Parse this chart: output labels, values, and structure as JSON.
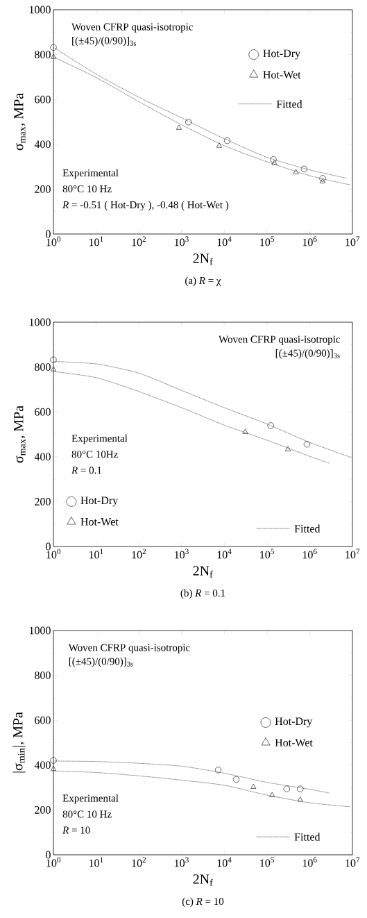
{
  "chart_data": [
    {
      "type": "scatter",
      "title": "(a) *R* = χ",
      "xlabel": "2N$_{f}$",
      "ylabel": "σ$_{max}$, MPa",
      "log": "x",
      "legend": "top right",
      "xlim": [
        1,
        10000000
      ],
      "ylim": [
        0,
        1000
      ],
      "xticks": [
        {
          "value": 1,
          "label": "10$^{0}$"
        },
        {
          "value": 10,
          "label": "10$^{1}$"
        },
        {
          "value": 100,
          "label": "10$^{2}$"
        },
        {
          "value": 1000,
          "label": "10$^{3}$"
        },
        {
          "value": 10000,
          "label": "10$^{4}$"
        },
        {
          "value": 100000,
          "label": "10$^{5}$"
        },
        {
          "value": 1000000,
          "label": "10$^{6}$"
        },
        {
          "value": 10000000,
          "label": "10$^{7}$"
        }
      ],
      "yticks": [
        0,
        200,
        400,
        600,
        800,
        1000
      ],
      "annotations": [
        "Woven CFRP quasi-isotropic",
        "[(±45)/(0/90)]$_{3s}$",
        "Experimental",
        "80°C 10 Hz",
        "*R* = -0.51 ( Hot-Dry ), -0.48 ( Hot-Wet )"
      ],
      "series": [
        {
          "name": "Hot-Dry",
          "type": "scatter",
          "marker": "circle",
          "color": "#000000",
          "x": [
            1,
            1450,
            11700,
            141000,
            740000,
            2000000
          ],
          "values": [
            832,
            499,
            416,
            332,
            290,
            248
          ]
        },
        {
          "name": "Hot-Wet",
          "type": "scatter",
          "marker": "triangle",
          "color": "#000000",
          "x": [
            1,
            870,
            7600,
            149000,
            475000,
            2000000
          ],
          "values": [
            789,
            473,
            393,
            316,
            275,
            234
          ]
        },
        {
          "name": "Fitted",
          "type": "line",
          "line_style": "dotted",
          "color": "#555555",
          "x": [
            1,
            10,
            100,
            1000,
            10000,
            100000,
            1000000,
            7200000
          ],
          "values": [
            832,
            713,
            610,
            518,
            425,
            342,
            286,
            249
          ]
        },
        {
          "type": "line",
          "line_style": "dotted",
          "color": "#555555",
          "x": [
            1,
            10,
            100,
            1000,
            10000,
            100000,
            1000000,
            8900000
          ],
          "values": [
            789,
            698,
            590,
            487,
            394,
            322,
            260,
            219
          ]
        }
      ]
    },
    {
      "type": "scatter",
      "title": "(b) *R* = 0.1",
      "xlabel": "2N$_{f}$",
      "ylabel": "σ$_{max}$, MPa",
      "log": "x",
      "legend": "bottom left",
      "xlim": [
        1,
        10000000
      ],
      "ylim": [
        0,
        1000
      ],
      "xticks": [
        {
          "value": 1,
          "label": "10$^{0}$"
        },
        {
          "value": 10,
          "label": "10$^{1}$"
        },
        {
          "value": 100,
          "label": "10$^{2}$"
        },
        {
          "value": 1000,
          "label": "10$^{3}$"
        },
        {
          "value": 10000,
          "label": "10$^{4}$"
        },
        {
          "value": 100000,
          "label": "10$^{5}$"
        },
        {
          "value": 1000000,
          "label": "10$^{6}$"
        },
        {
          "value": 10000000,
          "label": "10$^{7}$"
        }
      ],
      "yticks": [
        0,
        200,
        400,
        600,
        800,
        1000
      ],
      "annotations": [
        "Woven CFRP quasi-isotropic",
        "[(±45)/(0/90)]$_{3s}$",
        "Experimental",
        "80°C 10Hz",
        "*R* = 0.1"
      ],
      "series": [
        {
          "name": "Hot-Dry",
          "type": "scatter",
          "marker": "circle",
          "color": "#000000",
          "x": [
            1,
            122000,
            860000
          ],
          "values": [
            832,
            539,
            456
          ]
        },
        {
          "name": "Hot-Wet",
          "type": "scatter",
          "marker": "triangle",
          "color": "#000000",
          "x": [
            1,
            31000,
            310000
          ],
          "values": [
            789,
            510,
            433
          ]
        },
        {
          "name": "Fitted",
          "type": "line",
          "line_style": "dotted",
          "color": "#555555",
          "x": [
            1,
            10,
            100,
            1000,
            10000,
            100000,
            1000000,
            9300000
          ],
          "values": [
            825,
            814,
            773,
            696,
            619,
            546,
            464,
            397
          ]
        },
        {
          "type": "line",
          "line_style": "dotted",
          "color": "#555555",
          "x": [
            1,
            10,
            100,
            1000,
            10000,
            100000,
            1000000,
            2900000
          ],
          "values": [
            780,
            753,
            691,
            619,
            541,
            474,
            402,
            371
          ]
        }
      ]
    },
    {
      "type": "scatter",
      "title": "(c) *R* = 10",
      "xlabel": "2N$_{f}$",
      "ylabel": "|σ$_{min}$|, MPa",
      "log": "x",
      "legend": "right",
      "xlim": [
        1,
        10000000
      ],
      "ylim": [
        0,
        1000
      ],
      "xticks": [
        {
          "value": 1,
          "label": "10$^{0}$"
        },
        {
          "value": 10,
          "label": "10$^{1}$"
        },
        {
          "value": 100,
          "label": "10$^{2}$"
        },
        {
          "value": 1000,
          "label": "10$^{3}$"
        },
        {
          "value": 10000,
          "label": "10$^{4}$"
        },
        {
          "value": 100000,
          "label": "10$^{5}$"
        },
        {
          "value": 1000000,
          "label": "10$^{6}$"
        },
        {
          "value": 10000000,
          "label": "10$^{7}$"
        }
      ],
      "yticks": [
        0,
        200,
        400,
        600,
        800,
        1000
      ],
      "annotations": [
        "Woven CFRP quasi-isotropic",
        "[(±45)/(0/90)]$_{3s}$",
        "Experimental",
        "80°C 10 Hz",
        "*R* = 10"
      ],
      "series": [
        {
          "name": "Hot-Dry",
          "type": "scatter",
          "marker": "circle",
          "color": "#000000",
          "x": [
            1,
            7200,
            19000,
            290000,
            600000
          ],
          "values": [
            421,
            378,
            336,
            294,
            294
          ]
        },
        {
          "name": "Hot-Wet",
          "type": "scatter",
          "marker": "triangle",
          "color": "#000000",
          "x": [
            1,
            48000,
            132000,
            600000
          ],
          "values": [
            382,
            302,
            265,
            245
          ]
        },
        {
          "name": "Fitted",
          "type": "line",
          "line_style": "dotted",
          "color": "#555555",
          "x": [
            1,
            10,
            100,
            1000,
            10000,
            100000,
            1000000,
            2800000
          ],
          "values": [
            418,
            416,
            408,
            395,
            364,
            323,
            292,
            276
          ]
        },
        {
          "type": "line",
          "line_style": "dotted",
          "color": "#555555",
          "x": [
            1,
            10,
            100,
            1000,
            10000,
            100000,
            1000000,
            9100000
          ],
          "values": [
            374,
            367,
            352,
            333,
            310,
            266,
            232,
            214
          ]
        }
      ]
    }
  ]
}
